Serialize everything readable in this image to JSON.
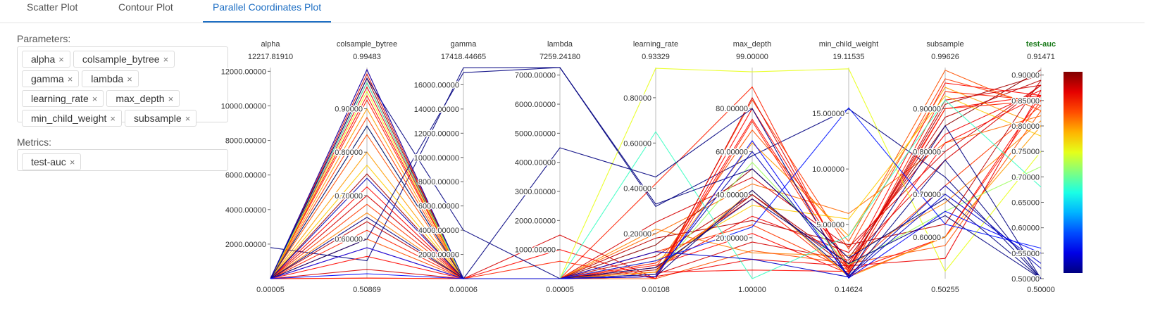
{
  "tabs": [
    "Scatter Plot",
    "Contour Plot",
    "Parallel Coordinates Plot"
  ],
  "active_tab": 2,
  "parameters_label": "Parameters:",
  "parameters": [
    "alpha",
    "colsample_bytree",
    "gamma",
    "lambda",
    "learning_rate",
    "max_depth",
    "min_child_weight",
    "subsample"
  ],
  "metrics_label": "Metrics:",
  "metrics": [
    "test-auc"
  ],
  "remove_icon": "×",
  "colors": {
    "active_tab": "#1e6fc4",
    "metric_title": "#1a7a1a"
  },
  "chart_data": {
    "type": "parallel_coordinates",
    "colorscale": "jet",
    "color_by": "test-auc",
    "axes": [
      {
        "name": "alpha",
        "top_label": "12217.81910",
        "bottom_label": "0.00005",
        "min": 5e-05,
        "max": 12217.8191,
        "ticks": [
          "2000.00000",
          "4000.00000",
          "6000.00000",
          "8000.00000",
          "10000.00000",
          "12000.00000"
        ],
        "tick_side": "left"
      },
      {
        "name": "colsample_bytree",
        "top_label": "0.99483",
        "bottom_label": "0.50869",
        "min": 0.50869,
        "max": 0.99483,
        "ticks": [
          "0.60000",
          "0.70000",
          "0.80000",
          "0.90000"
        ],
        "tick_side": "left"
      },
      {
        "name": "gamma",
        "top_label": "17418.44665",
        "bottom_label": "0.00006",
        "min": 6e-05,
        "max": 17418.44665,
        "ticks": [
          "2000.00000",
          "4000.00000",
          "6000.00000",
          "8000.00000",
          "10000.00000",
          "12000.00000",
          "14000.00000",
          "16000.00000"
        ],
        "tick_side": "left"
      },
      {
        "name": "lambda",
        "top_label": "7259.24180",
        "bottom_label": "0.00005",
        "min": 5e-05,
        "max": 7259.2418,
        "ticks": [
          "1000.00000",
          "2000.00000",
          "3000.00000",
          "4000.00000",
          "5000.00000",
          "6000.00000",
          "7000.00000"
        ],
        "tick_side": "left"
      },
      {
        "name": "learning_rate",
        "top_label": "0.93329",
        "bottom_label": "0.00108",
        "min": 0.00108,
        "max": 0.93329,
        "ticks": [
          "0.20000",
          "0.40000",
          "0.60000",
          "0.80000"
        ],
        "tick_side": "left"
      },
      {
        "name": "max_depth",
        "top_label": "99.00000",
        "bottom_label": "1.00000",
        "min": 1,
        "max": 99,
        "ticks": [
          "20.00000",
          "40.00000",
          "60.00000",
          "80.00000"
        ],
        "tick_side": "left"
      },
      {
        "name": "min_child_weight",
        "top_label": "19.11535",
        "bottom_label": "0.14624",
        "min": 0.14624,
        "max": 19.11535,
        "ticks": [
          "5.00000",
          "10.00000",
          "15.00000"
        ],
        "tick_side": "left"
      },
      {
        "name": "subsample",
        "top_label": "0.99626",
        "bottom_label": "0.50255",
        "min": 0.50255,
        "max": 0.99626,
        "ticks": [
          "0.60000",
          "0.70000",
          "0.80000",
          "0.90000"
        ],
        "tick_side": "left"
      },
      {
        "name": "test-auc",
        "top_label": "0.91471",
        "bottom_label": "0.50000",
        "min": 0.5,
        "max": 0.91471,
        "ticks": [
          "0.50000",
          "0.55000",
          "0.60000",
          "0.65000",
          "0.70000",
          "0.75000",
          "0.80000",
          "0.85000",
          "0.90000"
        ],
        "tick_side": "right",
        "is_metric": true
      }
    ],
    "colorbar": {
      "min": 0.5,
      "max": 0.91471
    },
    "lines": [
      [
        1800,
        0.55,
        17400,
        7259,
        0.32,
        58,
        15.4,
        0.74,
        0.5
      ],
      [
        0.1,
        0.99,
        0.1,
        0.1,
        0.2,
        45,
        6.0,
        0.82,
        0.82
      ],
      [
        0.1,
        0.98,
        0.1,
        0.1,
        0.25,
        48,
        3.0,
        0.8,
        0.88
      ],
      [
        0.1,
        0.97,
        0.1,
        0.1,
        0.15,
        52,
        2.0,
        0.86,
        0.91
      ],
      [
        0.1,
        0.96,
        0.1,
        0.1,
        0.1,
        40,
        1.5,
        0.88,
        0.89
      ],
      [
        0.1,
        0.95,
        0.1,
        0.1,
        0.05,
        30,
        2.5,
        0.84,
        0.87
      ],
      [
        0.1,
        0.93,
        0.1,
        0.1,
        0.02,
        75,
        1.2,
        0.9,
        0.86
      ],
      [
        0.1,
        0.92,
        0.1,
        0.1,
        0.42,
        90,
        0.8,
        0.94,
        0.85
      ],
      [
        0.1,
        0.88,
        0.1,
        0.1,
        0.01,
        84,
        2.8,
        0.97,
        0.84
      ],
      [
        0.1,
        0.84,
        0.1,
        0.1,
        0.05,
        70,
        3.5,
        0.99,
        0.83
      ],
      [
        0.1,
        0.8,
        0.1,
        0.1,
        0.03,
        64,
        4.0,
        0.95,
        0.8
      ],
      [
        0.1,
        0.77,
        0.1,
        0.1,
        0.08,
        35,
        5.5,
        0.93,
        0.78
      ],
      [
        0.1,
        0.75,
        0.1,
        0.1,
        0.04,
        40,
        1.1,
        0.91,
        0.9
      ],
      [
        0.1,
        0.72,
        0.1,
        0.1,
        0.06,
        22,
        0.6,
        0.82,
        0.86
      ],
      [
        0.1,
        0.7,
        0.1,
        0.1,
        0.02,
        18,
        1.8,
        0.78,
        0.88
      ],
      [
        0.1,
        0.68,
        0.1,
        0.1,
        0.12,
        26,
        0.9,
        0.72,
        0.84
      ],
      [
        0.1,
        0.66,
        0.1,
        0.1,
        0.22,
        13,
        2.2,
        0.68,
        0.81
      ],
      [
        0.1,
        0.64,
        0.1,
        0.1,
        0.18,
        28,
        3.2,
        0.63,
        0.89
      ],
      [
        0.1,
        0.62,
        0.1,
        0.1,
        0.07,
        38,
        0.4,
        0.6,
        0.85
      ],
      [
        0.1,
        0.6,
        0.1,
        0.1,
        0.00108,
        14,
        1.5,
        0.58,
        0.83
      ],
      [
        0.1,
        0.58,
        0.1,
        0.1,
        0.01,
        10,
        1.3,
        0.55,
        0.87
      ],
      [
        0.1,
        0.56,
        0.1,
        0.1,
        0.03,
        5,
        0.8,
        0.6,
        0.86
      ],
      [
        0.1,
        0.53,
        0.1,
        1500,
        0.0012,
        85,
        1.0,
        0.92,
        0.88
      ],
      [
        0.1,
        0.51,
        0.1,
        1000,
        0.0012,
        80,
        1.4,
        0.96,
        0.86
      ],
      [
        0.1,
        0.51,
        0.1,
        600,
        0.0012,
        74,
        0.7,
        0.9,
        0.85
      ],
      [
        0.1,
        0.94,
        0.1,
        0.1,
        0.93,
        97,
        19.0,
        0.52,
        0.75
      ],
      [
        0.1,
        0.96,
        0.1,
        0.1,
        0.65,
        1,
        4.0,
        0.92,
        0.68
      ],
      [
        0.1,
        0.86,
        0.1,
        0.1,
        0.02,
        55,
        1.4,
        0.66,
        0.72
      ],
      [
        0.1,
        0.9,
        0.1,
        0.1,
        0.03,
        42,
        0.3,
        0.6,
        0.8
      ],
      [
        0.1,
        0.97,
        4000,
        0.1,
        0.01,
        42,
        0.5,
        0.86,
        0.5
      ],
      [
        0.1,
        0.86,
        0.1,
        4500,
        0.45,
        80,
        0.2,
        0.78,
        0.5
      ],
      [
        0.1,
        0.74,
        0.1,
        0.1,
        0.02,
        60,
        0.4,
        0.72,
        0.52
      ],
      [
        0.1,
        0.6,
        17000,
        7259,
        0.33,
        52,
        2.0,
        0.69,
        0.5
      ],
      [
        0.1,
        0.65,
        0.1,
        0.1,
        0.05,
        38,
        1.5,
        0.65,
        0.5
      ],
      [
        0.1,
        0.58,
        0.1,
        0.1,
        0.08,
        25,
        15.5,
        0.63,
        0.56
      ],
      [
        0.1,
        0.52,
        0.1,
        0.1,
        0.01,
        65,
        0.2,
        0.66,
        0.55
      ],
      [
        0.1,
        0.99,
        0.1,
        0.1,
        0.12,
        10,
        0.3,
        0.7,
        0.53
      ]
    ]
  }
}
